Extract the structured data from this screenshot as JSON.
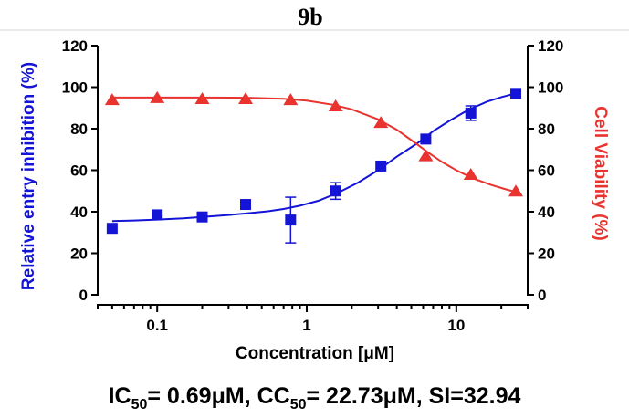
{
  "chart_data": {
    "type": "scatter",
    "title": "9b",
    "xlabel": "Concentration [μM]",
    "ylabel_left": "Relative entry inhibition (%)",
    "ylabel_right": "Cell Viability (%)",
    "xscale": "log",
    "xlim": [
      0.04,
      30
    ],
    "ylim": [
      0,
      120
    ],
    "y_ticks": [
      0,
      20,
      40,
      60,
      80,
      100,
      120
    ],
    "x_tick_labels": [
      {
        "value": 0.1,
        "label": "0.1"
      },
      {
        "value": 1,
        "label": "1"
      },
      {
        "value": 10,
        "label": "10"
      }
    ],
    "series": [
      {
        "name": "Relative entry inhibition",
        "axis": "left",
        "color": "#1414d6",
        "marker": "square",
        "x": [
          0.05,
          0.1,
          0.2,
          0.39,
          0.78,
          1.56,
          3.13,
          6.25,
          12.5,
          25
        ],
        "y": [
          32,
          38.5,
          37.5,
          43.5,
          36,
          50,
          62,
          75,
          87.5,
          97
        ],
        "err": [
          0,
          0,
          0,
          1.5,
          11,
          4,
          0,
          0,
          3.5,
          0
        ],
        "fit_x": [
          0.05,
          0.07,
          0.1,
          0.15,
          0.2,
          0.3,
          0.4,
          0.55,
          0.7,
          0.9,
          1.2,
          1.6,
          2.2,
          3,
          4,
          5.5,
          7,
          9,
          12,
          16,
          20,
          25
        ],
        "fit_y": [
          35.5,
          35.8,
          36.2,
          36.8,
          37.5,
          38.4,
          39.2,
          40.2,
          41.3,
          42.9,
          45.3,
          49,
          54,
          60,
          66.5,
          73,
          78.8,
          83.8,
          89,
          93,
          95.2,
          97
        ]
      },
      {
        "name": "Cell Viability",
        "axis": "right",
        "color": "#e8332e",
        "marker": "triangle",
        "x": [
          0.05,
          0.1,
          0.2,
          0.39,
          0.78,
          1.56,
          3.13,
          6.25,
          12.5,
          25
        ],
        "y": [
          94,
          95,
          94.5,
          94.5,
          94,
          91,
          83,
          67,
          58,
          50
        ],
        "err": [
          0,
          0,
          0,
          0,
          0,
          0,
          0,
          0,
          0,
          0
        ],
        "fit_x": [
          0.05,
          0.1,
          0.2,
          0.4,
          0.7,
          1,
          1.5,
          2,
          3,
          4,
          5,
          6.5,
          8,
          10,
          13,
          17,
          21,
          25
        ],
        "fit_y": [
          95,
          95,
          95,
          94.9,
          94.4,
          93.5,
          91.5,
          89.3,
          84.5,
          79.5,
          74.5,
          68.5,
          64,
          60,
          56,
          53,
          51,
          49.5
        ]
      }
    ]
  },
  "stats": {
    "ic_prefix": "IC",
    "ic_sub": "50",
    "ic_value": "= 0.69μM, ",
    "cc_prefix": "CC",
    "cc_sub": "50",
    "cc_value": "= 22.73μM, ",
    "si_text": "SI=32.94"
  }
}
